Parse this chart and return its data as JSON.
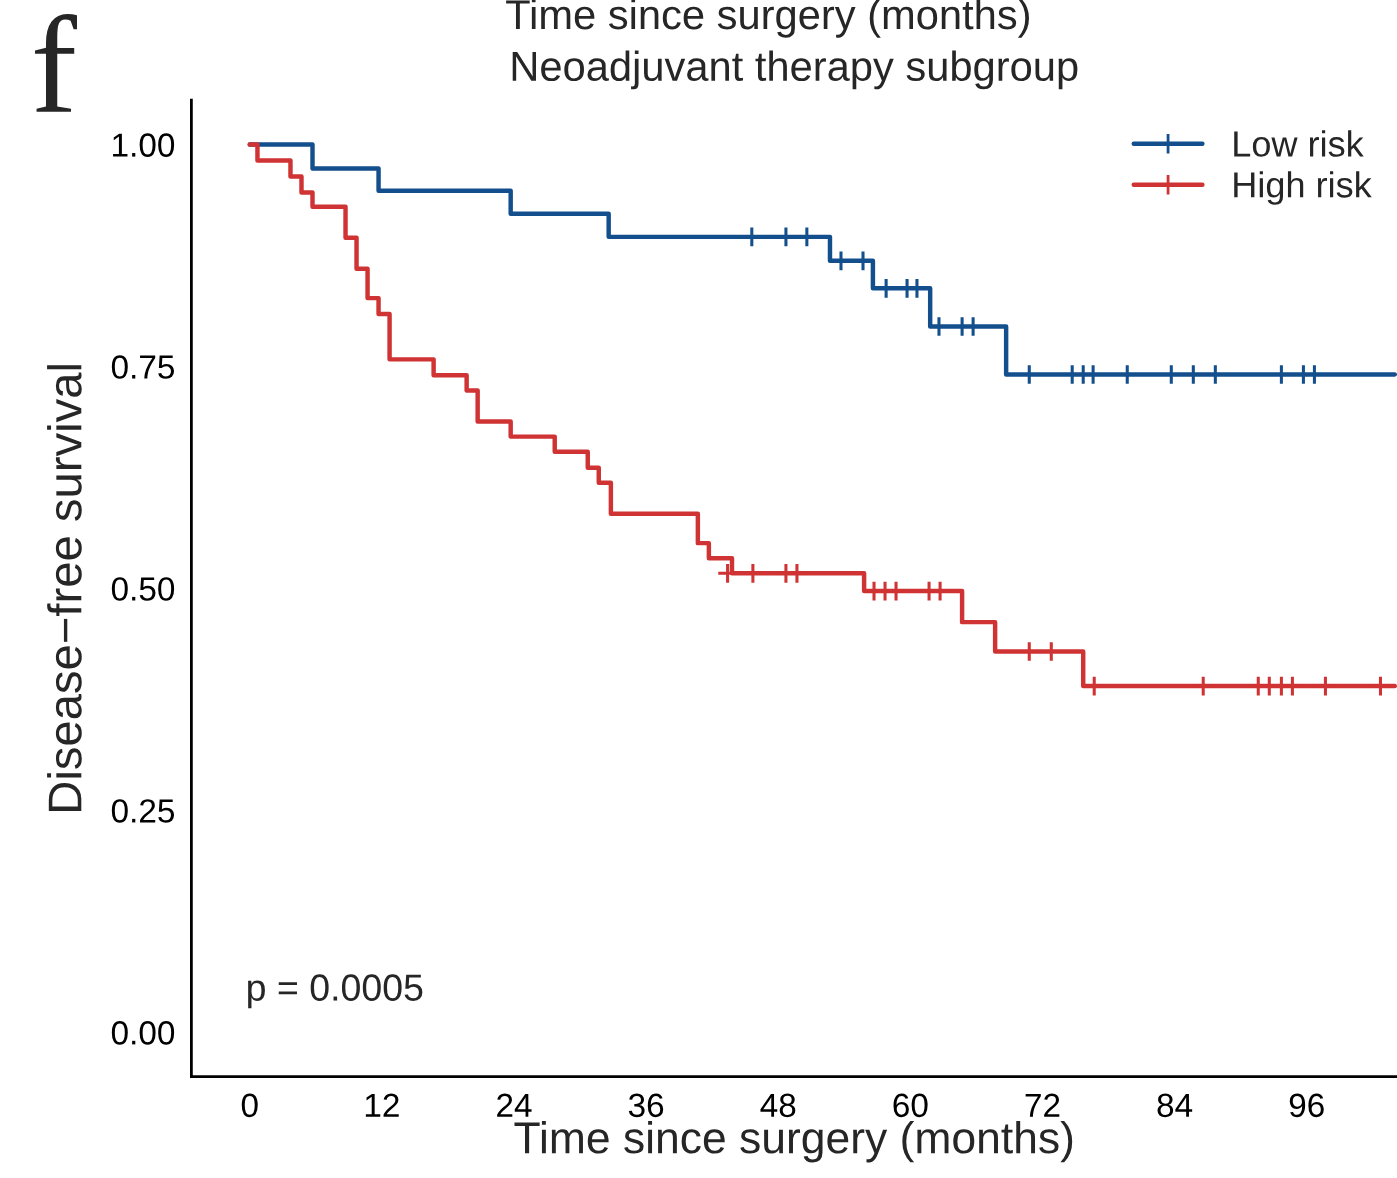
{
  "chart_data": {
    "type": "step",
    "title": "Neoadjuvant therapy subgroup",
    "xlabel": "Time since surgery (months)",
    "ylabel": "Disease−free survival",
    "annotations": [
      "f",
      "Time since surgery (months)",
      "p = 0.0005"
    ],
    "xlim": [
      -5.3,
      104.2
    ],
    "xticks": [
      0,
      12,
      24,
      36,
      48,
      60,
      72,
      84,
      96
    ],
    "ylim": [
      -0.05,
      1.05
    ],
    "yticks": [
      {
        "value": 0,
        "label": "0.00"
      },
      {
        "value": 0.25,
        "label": "0.25"
      },
      {
        "value": 0.5,
        "label": "0.50"
      },
      {
        "value": 0.75,
        "label": "0.75"
      },
      {
        "value": 1,
        "label": "1.00"
      }
    ],
    "grid": false,
    "legend": "top right",
    "series": [
      {
        "name": "Low risk",
        "color": "#134f8c",
        "x": [
          0,
          5.7,
          11.7,
          23.7,
          32.6,
          52.7,
          56.6,
          61.8,
          68.7,
          104
        ],
        "values": [
          1.0,
          0.973,
          0.948,
          0.922,
          0.896,
          0.869,
          0.838,
          0.795,
          0.741,
          0.741
        ]
      },
      {
        "name": "High risk",
        "color": "#d03333",
        "x": [
          0,
          0.7,
          3.7,
          4.7,
          5.7,
          8.7,
          9.7,
          10.7,
          11.7,
          12.7,
          16.7,
          19.7,
          20.7,
          23.7,
          27.7,
          30.7,
          31.7,
          32.8,
          40.7,
          41.7,
          43.8,
          55.8,
          64.7,
          67.7,
          75.7,
          104
        ],
        "values": [
          1.0,
          0.982,
          0.964,
          0.946,
          0.93,
          0.895,
          0.86,
          0.827,
          0.809,
          0.758,
          0.74,
          0.723,
          0.688,
          0.671,
          0.654,
          0.636,
          0.619,
          0.584,
          0.551,
          0.534,
          0.517,
          0.497,
          0.462,
          0.429,
          0.39,
          0.39
        ]
      },
      {
        "type": "scatter",
        "marker": "cross",
        "color": "#134f8c",
        "x": [
          45.6,
          48.7,
          50.6,
          53.7,
          55.7,
          57.8,
          59.7,
          60.6,
          62.6,
          64.7,
          65.7,
          70.8,
          74.7,
          75.7,
          76.6,
          79.7,
          83.7,
          85.7,
          87.7,
          93.7,
          95.7,
          96.7
        ],
        "values": [
          0.896,
          0.896,
          0.896,
          0.869,
          0.869,
          0.838,
          0.838,
          0.838,
          0.795,
          0.795,
          0.795,
          0.741,
          0.741,
          0.741,
          0.741,
          0.741,
          0.741,
          0.741,
          0.741,
          0.741,
          0.741,
          0.741
        ]
      },
      {
        "type": "scatter",
        "marker": "cross",
        "color": "#d03333",
        "x": [
          43.4,
          45.7,
          48.7,
          49.7,
          56.7,
          57.7,
          58.7,
          61.7,
          62.7,
          70.8,
          72.8,
          76.7,
          86.6,
          91.6,
          92.6,
          93.7,
          94.7,
          97.7,
          102.7
        ],
        "values": [
          0.517,
          0.517,
          0.517,
          0.517,
          0.497,
          0.497,
          0.497,
          0.497,
          0.497,
          0.429,
          0.429,
          0.39,
          0.39,
          0.39,
          0.39,
          0.39,
          0.39,
          0.39,
          0.39
        ]
      }
    ]
  }
}
